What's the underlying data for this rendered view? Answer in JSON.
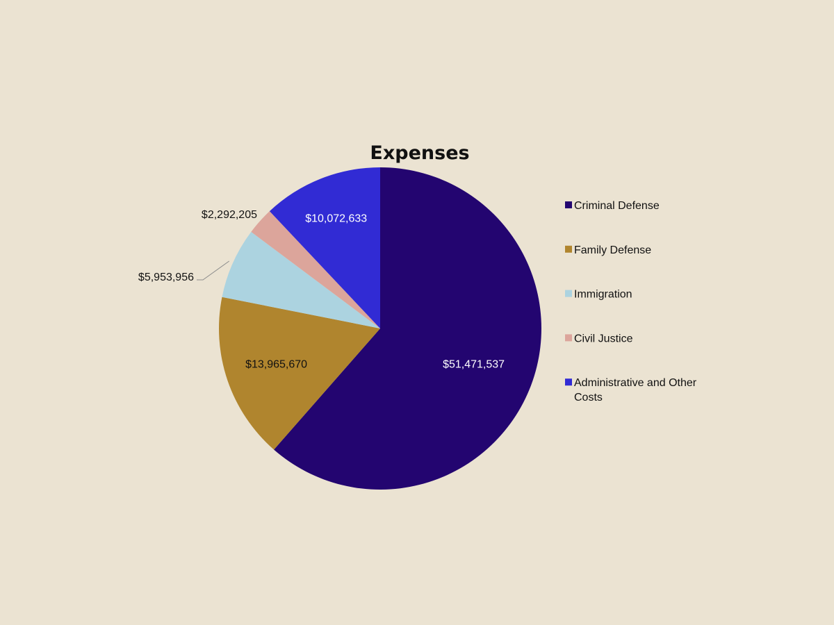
{
  "chart_data": {
    "type": "pie",
    "title": "Expenses",
    "legend_position": "right",
    "slices": [
      {
        "label": "Criminal Defense",
        "value": 51471537,
        "value_label": "$51,471,537",
        "color": "#230570",
        "label_color": "#ffffff"
      },
      {
        "label": "Family Defense",
        "value": 13965670,
        "value_label": "$13,965,670",
        "color": "#b0852e",
        "label_color": "#111111"
      },
      {
        "label": "Immigration",
        "value": 5953956,
        "value_label": "$5,953,956",
        "color": "#acd3e0",
        "label_color": "#111111"
      },
      {
        "label": "Civil Justice",
        "value": 2292205,
        "value_label": "$2,292,205",
        "color": "#dca59b",
        "label_color": "#111111"
      },
      {
        "label": "Administrative and Other Costs",
        "value": 10072633,
        "value_label": "$10,072,633",
        "color": "#312bd4",
        "label_color": "#ffffff"
      }
    ]
  }
}
